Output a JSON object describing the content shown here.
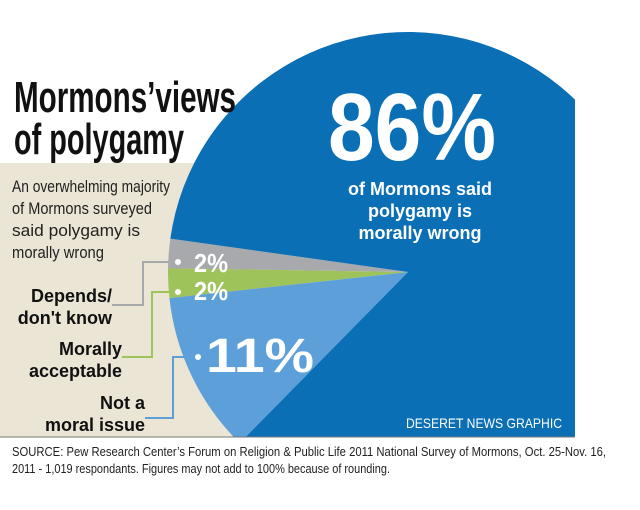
{
  "chart_data": {
    "type": "pie",
    "title": [
      "Mormons’views",
      "of polygamy"
    ],
    "subtitle": [
      "An overwhelming majority",
      "of Mormons surveyed",
      "said polygamy is",
      "morally wrong"
    ],
    "categories": [
      [
        "Depends/",
        "don't know"
      ],
      [
        "Morally",
        "acceptable"
      ],
      [
        "Not a",
        "moral issue"
      ],
      [
        "of Mormons said",
        "polygamy is",
        "morally wrong"
      ]
    ],
    "values": [
      2,
      2,
      11,
      86
    ],
    "value_labels": [
      "2%",
      "2%",
      "11%",
      "86%"
    ],
    "colors": [
      "#a7a9ac",
      "#9dc35a",
      "#5d9fd9",
      "#0a6fb5"
    ],
    "credit": "DESERET NEWS GRAPHIC",
    "source": [
      "SOURCE: Pew Research Center’s Forum on Religion & Public Life 2011 National Survey of Mormons, Oct. 25-Nov. 16,",
      "2011 - 1,019 respondants. Figures may not add to 100% because of rounding."
    ]
  }
}
